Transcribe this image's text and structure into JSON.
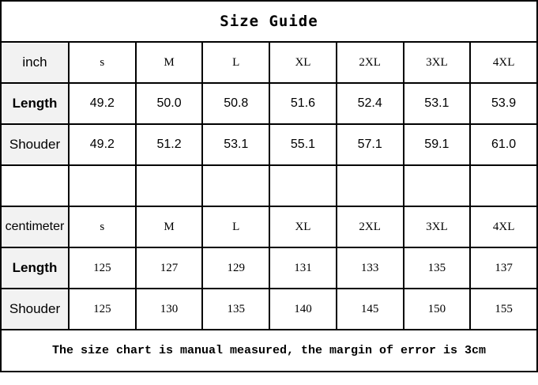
{
  "title": "Size Guide",
  "inch": {
    "unit_label": "inch",
    "sizes": [
      "s",
      "M",
      "L",
      "XL",
      "2XL",
      "3XL",
      "4XL"
    ],
    "rows": [
      {
        "label": "Length",
        "values": [
          "49.2",
          "50.0",
          "50.8",
          "51.6",
          "52.4",
          "53.1",
          "53.9"
        ]
      },
      {
        "label": "Shouder",
        "values": [
          "49.2",
          "51.2",
          "53.1",
          "55.1",
          "57.1",
          "59.1",
          "61.0"
        ]
      }
    ]
  },
  "centimeter": {
    "unit_label": "centimeter",
    "sizes": [
      "s",
      "M",
      "L",
      "XL",
      "2XL",
      "3XL",
      "4XL"
    ],
    "rows": [
      {
        "label": "Length",
        "values": [
          "125",
          "127",
          "129",
          "131",
          "133",
          "135",
          "137"
        ]
      },
      {
        "label": "Shouder",
        "values": [
          "125",
          "130",
          "135",
          "140",
          "145",
          "150",
          "155"
        ]
      }
    ]
  },
  "footer": "The size chart is manual measured, the margin of error is 3cm",
  "colors": {
    "label_bg": "#f2f2f2",
    "border": "#000000"
  }
}
